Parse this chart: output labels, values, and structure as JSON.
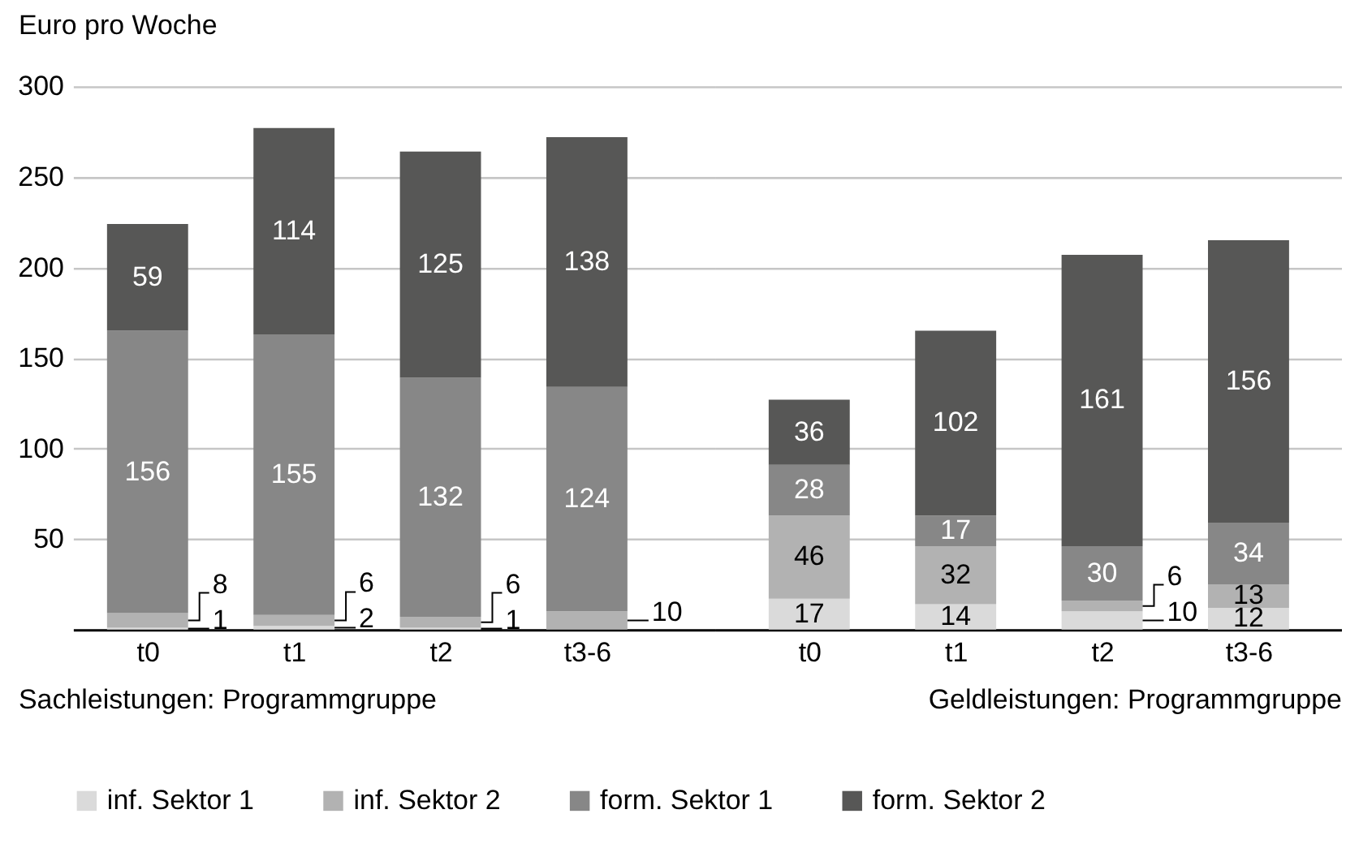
{
  "chart_data": [
    {
      "type": "bar",
      "stacked": true,
      "ylabel": "Euro pro Woche",
      "xlabel": "Sachleistungen: Programmgruppe",
      "categories": [
        "t0",
        "t1",
        "t2",
        "t3-6"
      ],
      "series": [
        {
          "name": "inf. Sektor 1",
          "color": "#dadada",
          "values": [
            1,
            2,
            1,
            null
          ]
        },
        {
          "name": "inf. Sektor 2",
          "color": "#b2b2b2",
          "values": [
            8,
            6,
            6,
            10
          ]
        },
        {
          "name": "form. Sektor 1",
          "color": "#878787",
          "values": [
            156,
            155,
            132,
            124
          ]
        },
        {
          "name": "form. Sektor 2",
          "color": "#575756",
          "values": [
            59,
            114,
            125,
            138
          ]
        }
      ],
      "ylim": [
        0,
        300
      ],
      "yticks": [
        50,
        100,
        150,
        200,
        250,
        300
      ],
      "grid": "y",
      "data_labels": true,
      "legend": "bottom"
    },
    {
      "type": "bar",
      "stacked": true,
      "xlabel": "Geldleistungen: Programmgruppe",
      "categories": [
        "t0",
        "t1",
        "t2",
        "t3-6"
      ],
      "series": [
        {
          "name": "inf. Sektor 1",
          "color": "#dadada",
          "values": [
            17,
            14,
            10,
            12
          ]
        },
        {
          "name": "inf. Sektor 2",
          "color": "#b2b2b2",
          "values": [
            46,
            32,
            6,
            13
          ]
        },
        {
          "name": "form. Sektor 1",
          "color": "#878787",
          "values": [
            28,
            17,
            30,
            34
          ]
        },
        {
          "name": "form. Sektor 2",
          "color": "#575756",
          "values": [
            36,
            102,
            161,
            156
          ]
        }
      ],
      "ylim": [
        0,
        300
      ],
      "yticks": [
        50,
        100,
        150,
        200,
        250,
        300
      ],
      "grid": "y",
      "data_labels": true,
      "tick_labels": "x"
    }
  ]
}
